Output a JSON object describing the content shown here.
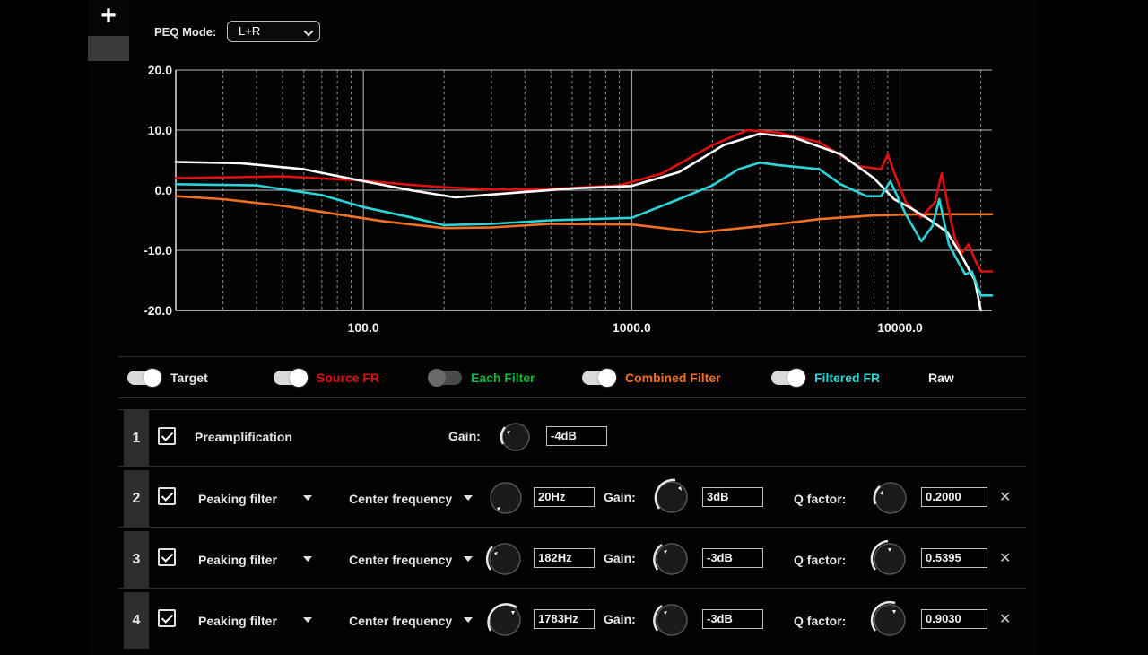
{
  "toolbar": {
    "add_label": "+"
  },
  "peq": {
    "label": "PEQ Mode:",
    "mode": "L+R"
  },
  "colors": {
    "target": "#ffffff",
    "source": "#e01010",
    "each": "#17b63c",
    "combined": "#f07026",
    "filtered": "#2cd4d8",
    "raw": "#ffffff"
  },
  "chart_data": {
    "type": "line",
    "x_scale": "log",
    "xlim": [
      20,
      22000
    ],
    "ylim": [
      -20,
      20
    ],
    "y_ticks": [
      "20.0",
      "10.0",
      "0.0",
      "-10.0",
      "-20.0"
    ],
    "x_ticks": [
      "100.0",
      "1000.0",
      "10000.0"
    ],
    "grid": true,
    "series": [
      {
        "name": "Combined Filter",
        "color": "#f07026",
        "x": [
          20,
          30,
          50,
          80,
          120,
          200,
          300,
          500,
          1000,
          1800,
          3000,
          5000,
          8000,
          12000,
          16000,
          22000
        ],
        "y": [
          -1,
          -1.5,
          -2.6,
          -4,
          -5.2,
          -6.3,
          -6.2,
          -5.6,
          -5.7,
          -7,
          -6,
          -4.8,
          -4.2,
          -4,
          -4,
          -4
        ]
      },
      {
        "name": "Source FR",
        "color": "#e01010",
        "x": [
          20,
          50,
          100,
          150,
          200,
          300,
          500,
          900,
          1300,
          2000,
          2700,
          3500,
          5000,
          7000,
          8500,
          9000,
          9500,
          10500,
          12000,
          13500,
          14300,
          15000,
          16000,
          17000,
          18000,
          19000,
          20000,
          22000
        ],
        "y": [
          2,
          2.3,
          1.6,
          0.9,
          0.5,
          0.1,
          0.2,
          0.8,
          2.8,
          7.5,
          10,
          9.6,
          8,
          4,
          3.5,
          6,
          3,
          -2,
          -4.5,
          -2,
          2.8,
          -2,
          -8,
          -10.5,
          -9,
          -11.5,
          -13.5,
          -13.5
        ]
      },
      {
        "name": "Target",
        "color": "#ffffff",
        "x": [
          20,
          35,
          60,
          100,
          150,
          220,
          350,
          600,
          1000,
          1500,
          2200,
          3000,
          4000,
          6000,
          8000,
          9500,
          11000,
          13000,
          15000,
          17000,
          19000,
          20000
        ],
        "y": [
          4.7,
          4.5,
          3.5,
          1.5,
          0,
          -1.2,
          -0.5,
          0.3,
          0.7,
          3,
          7.5,
          9.4,
          8.8,
          6,
          2,
          -1.5,
          -3,
          -5,
          -7,
          -11,
          -15,
          -20
        ]
      },
      {
        "name": "Filtered FR",
        "color": "#2cd4d8",
        "x": [
          20,
          40,
          70,
          100,
          150,
          200,
          300,
          500,
          1000,
          1500,
          2000,
          2500,
          3000,
          3500,
          5000,
          6000,
          7500,
          8500,
          9200,
          10500,
          12000,
          13200,
          14000,
          15200,
          16500,
          17500,
          18500,
          20000,
          22000
        ],
        "y": [
          1,
          0.8,
          -0.8,
          -2.8,
          -4.5,
          -5.8,
          -5.6,
          -5,
          -4.6,
          -1.5,
          0.8,
          3.5,
          4.6,
          4.2,
          3.5,
          1,
          -1,
          -1,
          1.5,
          -4,
          -8.5,
          -6,
          -1.5,
          -9,
          -12,
          -14,
          -13.5,
          -17.5,
          -17.5
        ]
      }
    ]
  },
  "legend": {
    "target": "Target",
    "source": "Source FR",
    "each": "Each Filter",
    "combined": "Combined Filter",
    "filtered": "Filtered FR",
    "raw": "Raw"
  },
  "preamp": {
    "num": "1",
    "label": "Preamplification",
    "gain_label": "Gain:",
    "gain": "-4dB"
  },
  "filters": [
    {
      "num": "2",
      "type": "Peaking filter",
      "freq_label": "Center frequency",
      "freq": "20Hz",
      "gain_label": "Gain:",
      "gain": "3dB",
      "q_label": "Q factor:",
      "q": "0.2000"
    },
    {
      "num": "3",
      "type": "Peaking filter",
      "freq_label": "Center frequency",
      "freq": "182Hz",
      "gain_label": "Gain:",
      "gain": "-3dB",
      "q_label": "Q factor:",
      "q": "0.5395"
    },
    {
      "num": "4",
      "type": "Peaking filter",
      "freq_label": "Center frequency",
      "freq": "1783Hz",
      "gain_label": "Gain:",
      "gain": "-3dB",
      "q_label": "Q factor:",
      "q": "0.9030"
    }
  ],
  "close_glyph": "✕"
}
